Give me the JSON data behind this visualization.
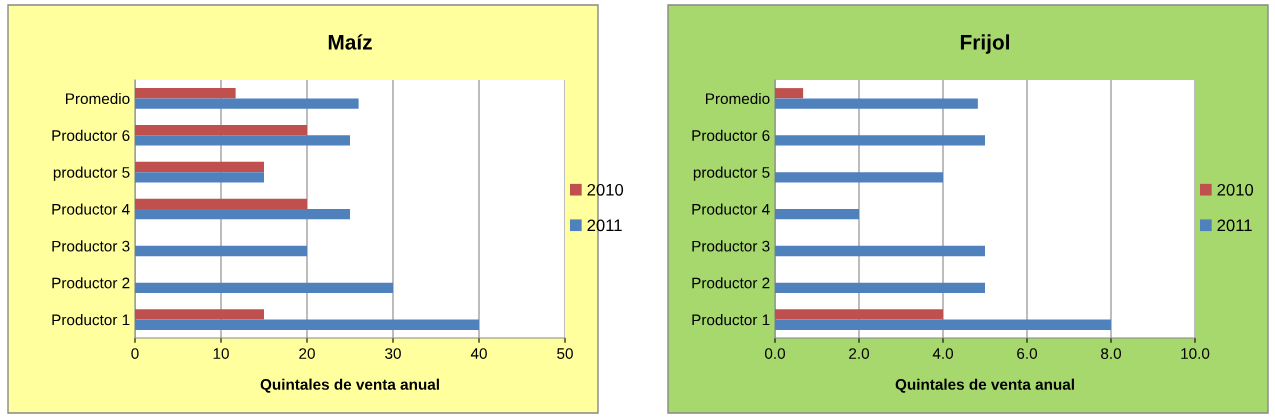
{
  "chart_data": [
    {
      "type": "bar",
      "orientation": "horizontal",
      "title": "Maíz",
      "xlabel": "Quintales de venta anual",
      "categories": [
        "Promedio",
        "Productor 6",
        "productor 5",
        "Productor 4",
        "Productor 3",
        "Productor 2",
        "Productor 1"
      ],
      "series": [
        {
          "name": "2010",
          "color": "#c0504d",
          "values": [
            11.7,
            20,
            15,
            20,
            null,
            null,
            15
          ]
        },
        {
          "name": "2011",
          "color": "#4f81bd",
          "values": [
            26,
            25,
            15,
            25,
            20,
            30,
            40
          ]
        }
      ],
      "xlim": [
        0,
        50
      ],
      "xticks": [
        0,
        10,
        20,
        30,
        40,
        50
      ],
      "grid": "x",
      "legend": "right"
    },
    {
      "type": "bar",
      "orientation": "horizontal",
      "title": "Frijol",
      "xlabel": "Quintales de venta anual",
      "categories": [
        "Promedio",
        "Productor 6",
        "productor 5",
        "Productor 4",
        "Productor 3",
        "Productor 2",
        "Productor 1"
      ],
      "series": [
        {
          "name": "2010",
          "color": "#c0504d",
          "values": [
            0.67,
            null,
            null,
            null,
            null,
            null,
            4
          ]
        },
        {
          "name": "2011",
          "color": "#4f81bd",
          "values": [
            4.83,
            5,
            4,
            2,
            5,
            5,
            8
          ]
        }
      ],
      "xlim": [
        0,
        10
      ],
      "xticks": [
        {
          "value": 0,
          "label": "0.0"
        },
        {
          "value": 2,
          "label": "2.0"
        },
        {
          "value": 4,
          "label": "4.0"
        },
        {
          "value": 6,
          "label": "6.0"
        },
        {
          "value": 8,
          "label": "8.0"
        },
        {
          "value": 10,
          "label": "10.0"
        }
      ],
      "grid": "x",
      "legend": "right"
    }
  ]
}
